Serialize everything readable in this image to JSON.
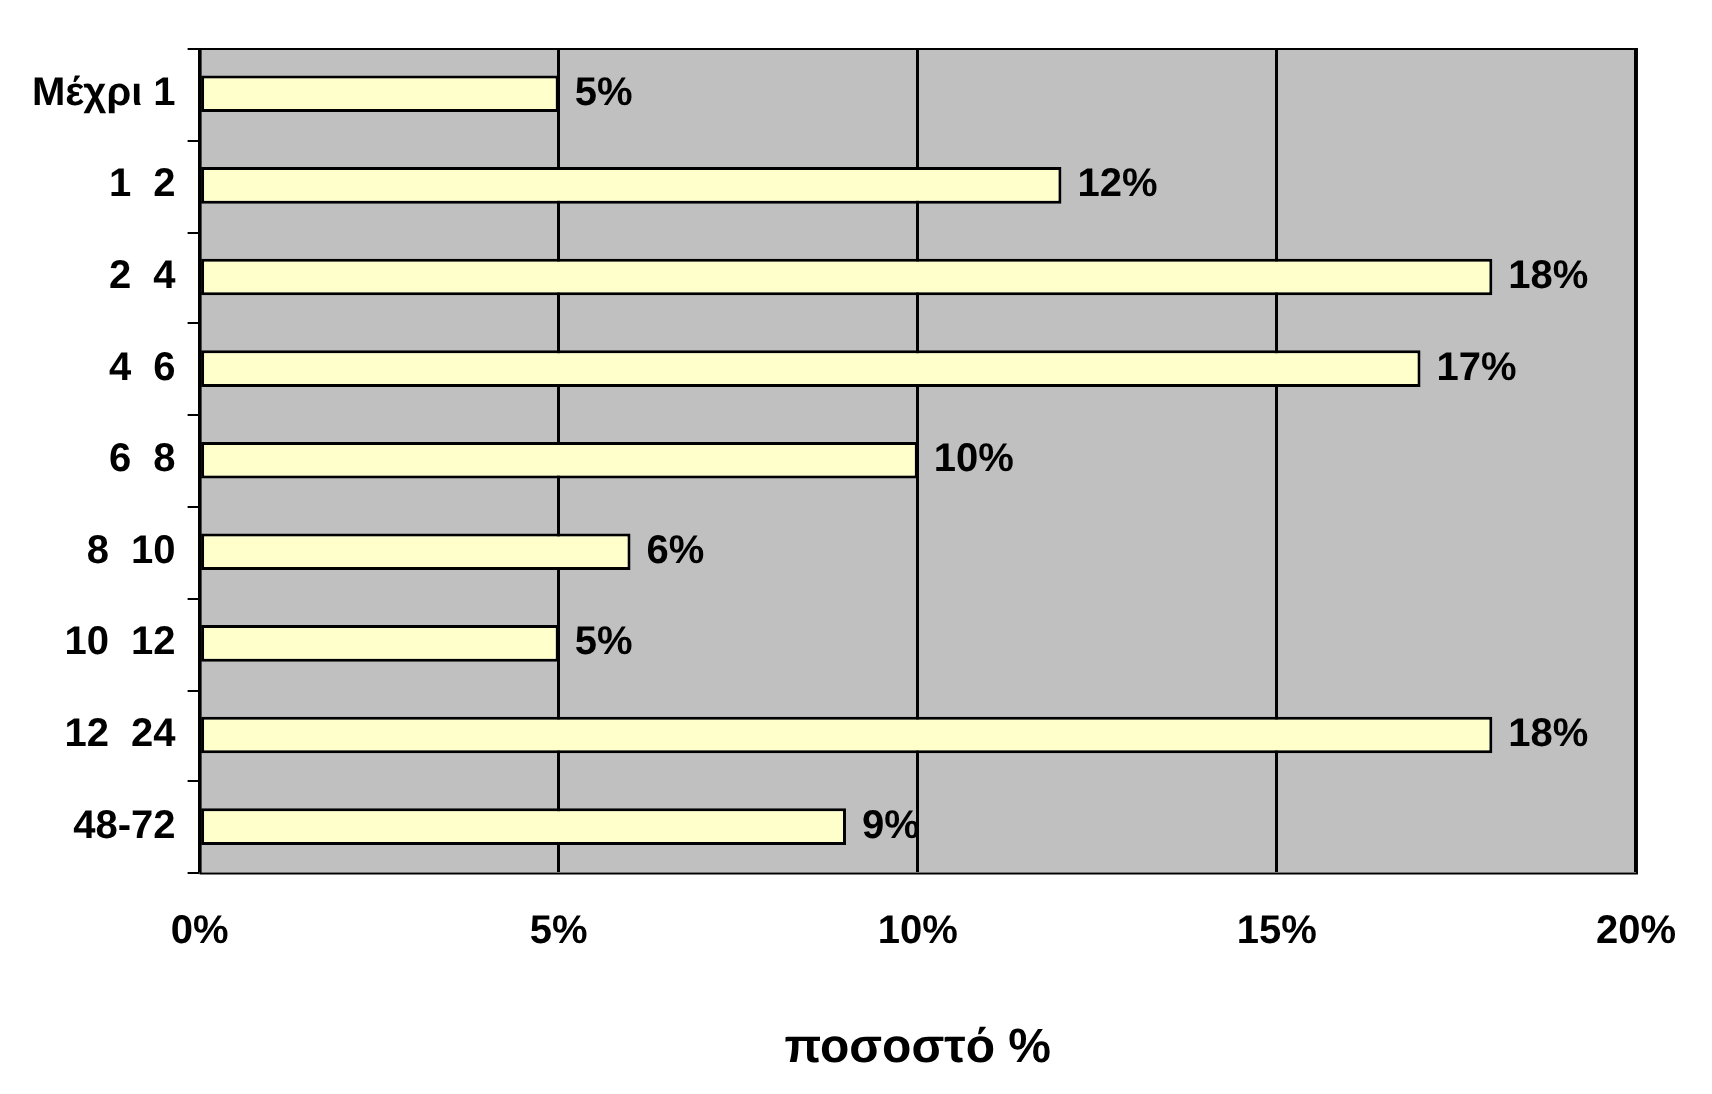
{
  "chart_data": {
    "type": "bar",
    "orientation": "horizontal",
    "xlabel": "ποσοστό %",
    "categories": [
      "Μέχρι 1",
      "1  2",
      "2  4",
      "4  6",
      "6  8",
      "8  10",
      "10  12",
      "12  24",
      "48-72"
    ],
    "values": [
      5,
      12,
      18,
      17,
      10,
      6,
      5,
      18,
      9
    ],
    "value_labels": [
      "5%",
      "12%",
      "18%",
      "17%",
      "10%",
      "6%",
      "5%",
      "18%",
      "9%"
    ],
    "color": "#ffffcc",
    "xlim": [
      0,
      20
    ],
    "xticks": [
      {
        "value": 0,
        "label": "0%"
      },
      {
        "value": 5,
        "label": "5%"
      },
      {
        "value": 10,
        "label": "10%"
      },
      {
        "value": 15,
        "label": "15%"
      },
      {
        "value": 20,
        "label": "20%"
      }
    ],
    "grid": "x",
    "legend": false
  }
}
